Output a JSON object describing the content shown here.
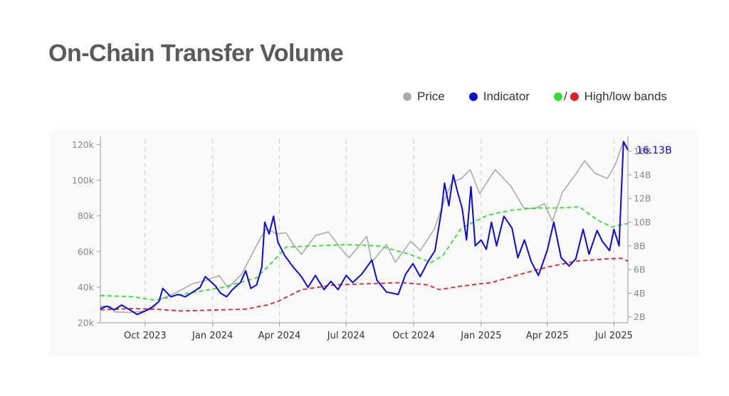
{
  "title": "On-Chain Transfer Volume",
  "legend": {
    "price": "Price",
    "indicator": "Indicator",
    "separator": "/",
    "bands": "High/low bands"
  },
  "colors": {
    "price": "#aaaaaa",
    "indicator": "#0a0ad6",
    "high_band": "#33dd33",
    "low_band": "#dd2222",
    "gridline": "#cccccc",
    "axis": "#999999"
  },
  "chart_data": {
    "type": "line",
    "x_ticks": [
      "Oct 2023",
      "Jan 2024",
      "Apr 2024",
      "Jul 2024",
      "Oct 2024",
      "Jan 2025",
      "Apr 2025",
      "Jul 2025"
    ],
    "x_range": [
      "2023-08-01",
      "2025-07-20"
    ],
    "y_left_ticks": [
      "20k",
      "40k",
      "60k",
      "80k",
      "100k",
      "120k"
    ],
    "y_left_range": [
      20000,
      123000
    ],
    "y_right_ticks": [
      "2B",
      "4B",
      "6B",
      "8B",
      "10B",
      "12B",
      "14B",
      "16B"
    ],
    "y_right_range": [
      1.5,
      17
    ],
    "grid": "vertical dashed at x ticks",
    "annotation": "16.13B",
    "series": [
      {
        "name": "Price",
        "axis": "left",
        "points": [
          [
            "2023-08-01",
            29300
          ],
          [
            "2023-08-15",
            29200
          ],
          [
            "2023-08-20",
            26100
          ],
          [
            "2023-09-10",
            25800
          ],
          [
            "2023-09-25",
            26300
          ],
          [
            "2023-10-10",
            27400
          ],
          [
            "2023-10-23",
            33500
          ],
          [
            "2023-11-10",
            36500
          ],
          [
            "2023-12-05",
            42000
          ],
          [
            "2023-12-20",
            43500
          ],
          [
            "2024-01-10",
            46500
          ],
          [
            "2024-01-22",
            39500
          ],
          [
            "2024-02-10",
            47500
          ],
          [
            "2024-02-28",
            62000
          ],
          [
            "2024-03-14",
            73000
          ],
          [
            "2024-03-28",
            70000
          ],
          [
            "2024-04-10",
            70500
          ],
          [
            "2024-04-20",
            64000
          ],
          [
            "2024-05-01",
            58500
          ],
          [
            "2024-05-20",
            69000
          ],
          [
            "2024-06-07",
            71000
          ],
          [
            "2024-06-25",
            61000
          ],
          [
            "2024-07-05",
            56500
          ],
          [
            "2024-07-29",
            68500
          ],
          [
            "2024-08-05",
            54000
          ],
          [
            "2024-08-25",
            64000
          ],
          [
            "2024-09-06",
            54000
          ],
          [
            "2024-09-27",
            65800
          ],
          [
            "2024-10-10",
            60500
          ],
          [
            "2024-10-29",
            72500
          ],
          [
            "2024-11-13",
            90000
          ],
          [
            "2024-11-22",
            99000
          ],
          [
            "2024-12-05",
            101000
          ],
          [
            "2024-12-17",
            106000
          ],
          [
            "2024-12-30",
            92500
          ],
          [
            "2025-01-20",
            106000
          ],
          [
            "2025-02-10",
            97000
          ],
          [
            "2025-02-28",
            84500
          ],
          [
            "2025-03-15",
            84000
          ],
          [
            "2025-03-28",
            87000
          ],
          [
            "2025-04-08",
            77000
          ],
          [
            "2025-04-22",
            93500
          ],
          [
            "2025-05-10",
            103500
          ],
          [
            "2025-05-22",
            111000
          ],
          [
            "2025-06-05",
            104000
          ],
          [
            "2025-06-22",
            101000
          ],
          [
            "2025-07-03",
            109000
          ],
          [
            "2025-07-14",
            122000
          ],
          [
            "2025-07-20",
            118000
          ]
        ]
      },
      {
        "name": "Indicator",
        "axis": "right",
        "points": [
          [
            "2023-08-01",
            2.7
          ],
          [
            "2023-08-10",
            2.9
          ],
          [
            "2023-08-20",
            2.6
          ],
          [
            "2023-08-30",
            3.0
          ],
          [
            "2023-09-10",
            2.6
          ],
          [
            "2023-09-20",
            2.2
          ],
          [
            "2023-10-01",
            2.5
          ],
          [
            "2023-10-10",
            2.8
          ],
          [
            "2023-10-20",
            3.3
          ],
          [
            "2023-10-25",
            4.4
          ],
          [
            "2023-11-05",
            3.7
          ],
          [
            "2023-11-15",
            3.9
          ],
          [
            "2023-11-25",
            3.7
          ],
          [
            "2023-12-05",
            4.1
          ],
          [
            "2023-12-15",
            4.5
          ],
          [
            "2023-12-22",
            5.4
          ],
          [
            "2024-01-05",
            4.6
          ],
          [
            "2024-01-12",
            4.0
          ],
          [
            "2024-01-20",
            3.7
          ],
          [
            "2024-01-28",
            4.3
          ],
          [
            "2024-02-08",
            4.9
          ],
          [
            "2024-02-15",
            5.9
          ],
          [
            "2024-02-22",
            4.4
          ],
          [
            "2024-03-01",
            4.7
          ],
          [
            "2024-03-08",
            6.2
          ],
          [
            "2024-03-12",
            10.0
          ],
          [
            "2024-03-18",
            9.0
          ],
          [
            "2024-03-24",
            10.5
          ],
          [
            "2024-03-30",
            8.3
          ],
          [
            "2024-04-08",
            7.2
          ],
          [
            "2024-04-20",
            6.2
          ],
          [
            "2024-05-01",
            5.4
          ],
          [
            "2024-05-10",
            4.5
          ],
          [
            "2024-05-20",
            5.5
          ],
          [
            "2024-06-01",
            4.3
          ],
          [
            "2024-06-10",
            5.0
          ],
          [
            "2024-06-20",
            4.3
          ],
          [
            "2024-07-01",
            5.5
          ],
          [
            "2024-07-10",
            4.9
          ],
          [
            "2024-07-22",
            5.6
          ],
          [
            "2024-08-05",
            6.8
          ],
          [
            "2024-08-12",
            5.1
          ],
          [
            "2024-08-25",
            4.1
          ],
          [
            "2024-09-10",
            3.9
          ],
          [
            "2024-09-20",
            5.6
          ],
          [
            "2024-09-30",
            6.5
          ],
          [
            "2024-10-10",
            5.4
          ],
          [
            "2024-10-20",
            6.6
          ],
          [
            "2024-10-30",
            7.6
          ],
          [
            "2024-11-08",
            11.0
          ],
          [
            "2024-11-12",
            13.3
          ],
          [
            "2024-11-18",
            11.4
          ],
          [
            "2024-11-24",
            14.0
          ],
          [
            "2024-11-30",
            12.5
          ],
          [
            "2024-12-06",
            11.2
          ],
          [
            "2024-12-12",
            8.5
          ],
          [
            "2024-12-18",
            13.0
          ],
          [
            "2024-12-24",
            8.0
          ],
          [
            "2025-01-01",
            8.5
          ],
          [
            "2025-01-08",
            7.7
          ],
          [
            "2025-01-15",
            10.0
          ],
          [
            "2025-01-22",
            8.0
          ],
          [
            "2025-02-01",
            10.5
          ],
          [
            "2025-02-12",
            9.5
          ],
          [
            "2025-02-20",
            7.0
          ],
          [
            "2025-03-01",
            8.5
          ],
          [
            "2025-03-10",
            6.7
          ],
          [
            "2025-03-20",
            5.5
          ],
          [
            "2025-04-01",
            7.6
          ],
          [
            "2025-04-10",
            10.0
          ],
          [
            "2025-04-20",
            7.0
          ],
          [
            "2025-05-01",
            6.3
          ],
          [
            "2025-05-10",
            6.9
          ],
          [
            "2025-05-20",
            9.4
          ],
          [
            "2025-05-28",
            7.3
          ],
          [
            "2025-06-08",
            9.3
          ],
          [
            "2025-06-15",
            8.4
          ],
          [
            "2025-06-25",
            7.6
          ],
          [
            "2025-07-01",
            9.4
          ],
          [
            "2025-07-08",
            8.0
          ],
          [
            "2025-07-14",
            16.8
          ],
          [
            "2025-07-20",
            16.1
          ]
        ]
      },
      {
        "name": "High band",
        "axis": "right",
        "dashed": true,
        "points": [
          [
            "2023-08-01",
            3.8
          ],
          [
            "2023-09-15",
            3.7
          ],
          [
            "2023-10-15",
            3.4
          ],
          [
            "2023-11-20",
            3.9
          ],
          [
            "2024-01-15",
            4.5
          ],
          [
            "2024-03-01",
            5.3
          ],
          [
            "2024-03-25",
            6.8
          ],
          [
            "2024-04-10",
            7.9
          ],
          [
            "2024-05-20",
            8.0
          ],
          [
            "2024-07-01",
            8.1
          ],
          [
            "2024-08-15",
            8.0
          ],
          [
            "2024-09-25",
            7.3
          ],
          [
            "2024-10-25",
            6.6
          ],
          [
            "2024-11-10",
            7.2
          ],
          [
            "2024-12-05",
            9.5
          ],
          [
            "2025-01-10",
            10.6
          ],
          [
            "2025-02-10",
            11.0
          ],
          [
            "2025-03-15",
            11.2
          ],
          [
            "2025-04-15",
            11.2
          ],
          [
            "2025-05-15",
            11.3
          ],
          [
            "2025-06-08",
            10.2
          ],
          [
            "2025-06-28",
            9.6
          ],
          [
            "2025-07-20",
            9.9
          ]
        ]
      },
      {
        "name": "Low band",
        "axis": "right",
        "dashed": true,
        "points": [
          [
            "2023-08-01",
            2.6
          ],
          [
            "2023-09-15",
            2.7
          ],
          [
            "2023-10-15",
            2.65
          ],
          [
            "2023-11-20",
            2.5
          ],
          [
            "2024-01-15",
            2.6
          ],
          [
            "2024-02-15",
            2.65
          ],
          [
            "2024-03-15",
            3.0
          ],
          [
            "2024-03-30",
            3.3
          ],
          [
            "2024-05-01",
            4.3
          ],
          [
            "2024-06-15",
            4.7
          ],
          [
            "2024-08-01",
            4.8
          ],
          [
            "2024-09-15",
            4.9
          ],
          [
            "2024-10-20",
            4.7
          ],
          [
            "2024-11-05",
            4.3
          ],
          [
            "2024-12-05",
            4.6
          ],
          [
            "2025-01-15",
            4.9
          ],
          [
            "2025-03-01",
            5.7
          ],
          [
            "2025-04-01",
            6.2
          ],
          [
            "2025-05-10",
            6.7
          ],
          [
            "2025-06-20",
            6.9
          ],
          [
            "2025-07-12",
            6.95
          ],
          [
            "2025-07-20",
            6.7
          ]
        ]
      }
    ]
  }
}
